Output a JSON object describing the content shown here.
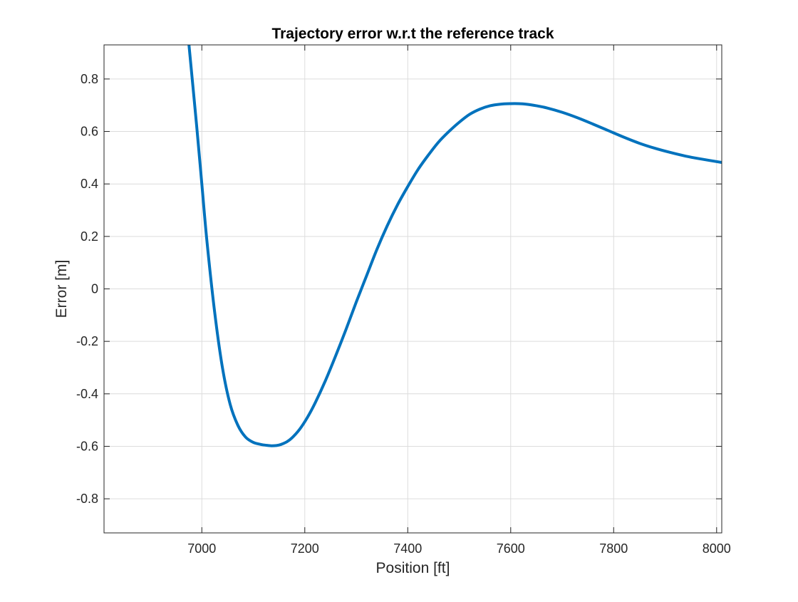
{
  "chart_data": {
    "type": "line",
    "title": "Trajectory error w.r.t the reference track",
    "xlabel": "Position [ft]",
    "ylabel": "Error [m]",
    "xlim": [
      6810,
      8010
    ],
    "ylim": [
      -0.93,
      0.93
    ],
    "xticks": [
      7000,
      7200,
      7400,
      7600,
      7800,
      8000
    ],
    "yticks": [
      -0.8,
      -0.6,
      -0.4,
      -0.2,
      0,
      0.2,
      0.4,
      0.6,
      0.8
    ],
    "xtick_labels": [
      "7000",
      "7200",
      "7400",
      "7600",
      "7800",
      "8000"
    ],
    "ytick_labels": [
      "-0.8",
      "-0.6",
      "-0.4",
      "-0.2",
      "0",
      "0.2",
      "0.4",
      "0.6",
      "0.8"
    ],
    "grid": true,
    "series": [
      {
        "color": "#0072BD",
        "x": [
          6975,
          6990,
          7000,
          7010,
          7025,
          7040,
          7055,
          7070,
          7085,
          7100,
          7115,
          7125,
          7135,
          7145,
          7150,
          7155,
          7165,
          7175,
          7190,
          7205,
          7220,
          7240,
          7260,
          7280,
          7300,
          7320,
          7340,
          7360,
          7380,
          7400,
          7420,
          7440,
          7460,
          7480,
          7500,
          7520,
          7540,
          7560,
          7580,
          7600,
          7615,
          7630,
          7650,
          7670,
          7700,
          7730,
          7760,
          7790,
          7820,
          7850,
          7880,
          7910,
          7940,
          7970,
          8010
        ],
        "y": [
          0.93,
          0.62,
          0.4,
          0.18,
          -0.09,
          -0.3,
          -0.44,
          -0.52,
          -0.565,
          -0.585,
          -0.593,
          -0.596,
          -0.598,
          -0.597,
          -0.595,
          -0.592,
          -0.583,
          -0.568,
          -0.535,
          -0.49,
          -0.435,
          -0.35,
          -0.255,
          -0.155,
          -0.05,
          0.05,
          0.15,
          0.24,
          0.32,
          0.39,
          0.455,
          0.51,
          0.56,
          0.6,
          0.635,
          0.665,
          0.685,
          0.698,
          0.704,
          0.706,
          0.706,
          0.704,
          0.698,
          0.69,
          0.673,
          0.652,
          0.628,
          0.603,
          0.578,
          0.555,
          0.536,
          0.52,
          0.506,
          0.495,
          0.482
        ]
      }
    ]
  }
}
